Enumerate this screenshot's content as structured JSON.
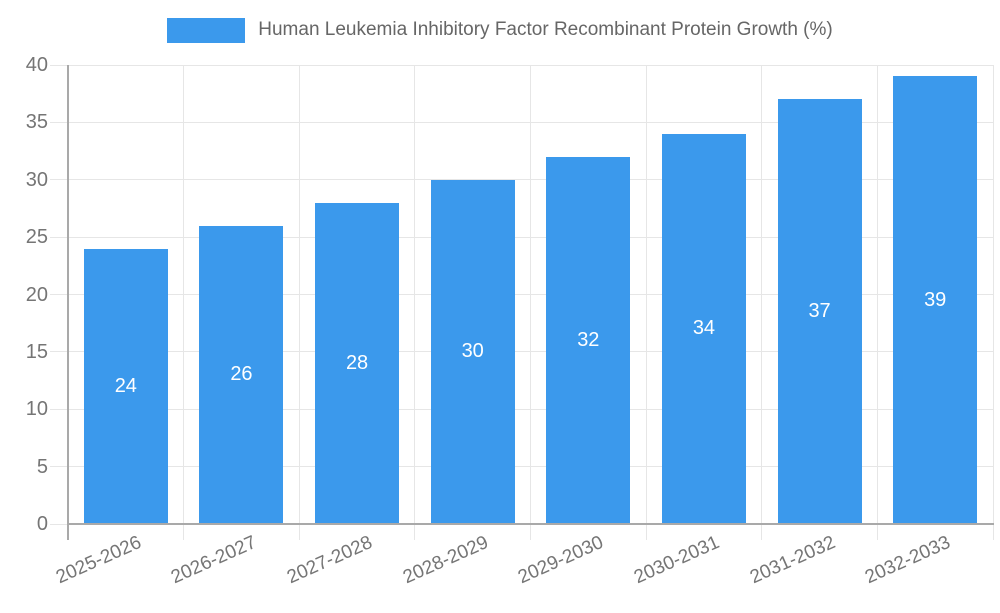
{
  "chart_data": {
    "type": "bar",
    "title": "Human Leukemia Inhibitory Factor Recombinant Protein Growth (%)",
    "categories": [
      "2025-2026",
      "2026-2027",
      "2027-2028",
      "2028-2029",
      "2029-2030",
      "2030-2031",
      "2031-2032",
      "2032-2033"
    ],
    "values": [
      24,
      26,
      28,
      30,
      32,
      34,
      37,
      39
    ],
    "value_labels": [
      "24",
      "26",
      "28",
      "30",
      "32",
      "34",
      "37",
      "39"
    ],
    "xlabel": "",
    "ylabel": "",
    "ylim": [
      0,
      40
    ],
    "ytick_step": 5,
    "yticks": [
      "0",
      "5",
      "10",
      "15",
      "20",
      "25",
      "30",
      "35",
      "40"
    ],
    "grid": true,
    "legend_position": "top",
    "bar_color": "#3b99ec",
    "value_label_color": "#ffffff",
    "tick_label_color": "#757575",
    "legend_text_color": "#666666",
    "gridline_color": "#e6e6e6",
    "axis_color": "#a9a9a9",
    "background_color": "#ffffff"
  }
}
